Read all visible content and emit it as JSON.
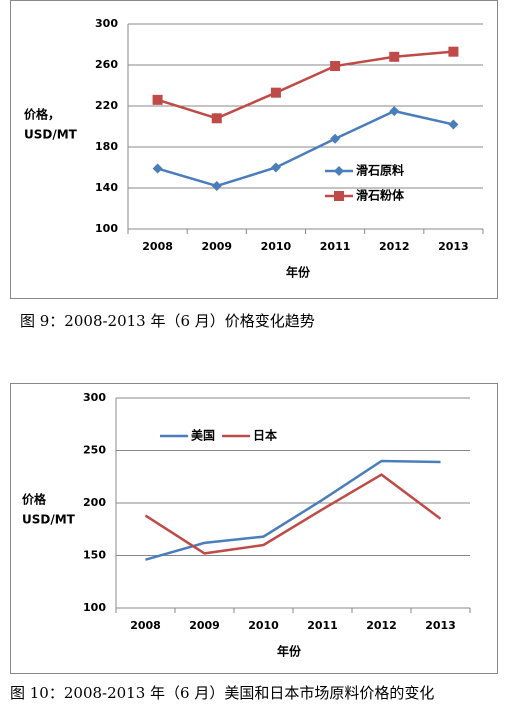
{
  "chart_data": [
    {
      "type": "line",
      "categories": [
        "2008",
        "2009",
        "2010",
        "2011",
        "2012",
        "2013"
      ],
      "series": [
        {
          "name": "滑石原料",
          "color": "#4a7ebb",
          "marker": "diamond",
          "values": [
            159,
            142,
            160,
            188,
            215,
            202
          ]
        },
        {
          "name": "滑石粉体",
          "color": "#be4b48",
          "marker": "square",
          "values": [
            226,
            208,
            233,
            259,
            268,
            273
          ]
        }
      ],
      "ylim": [
        100,
        300
      ],
      "yticks": [
        100,
        140,
        180,
        220,
        260,
        300
      ],
      "grid": true,
      "ylabel": [
        "价格，",
        "USD/MT"
      ],
      "xlabel": "年份",
      "legend": "right",
      "caption": "图 9：2008-2013 年（6 月）价格变化趋势"
    },
    {
      "type": "line",
      "categories": [
        "2008",
        "2009",
        "2010",
        "2011",
        "2012",
        "2013"
      ],
      "series": [
        {
          "name": "美国",
          "color": "#4a7ebb",
          "values": [
            146,
            162,
            168,
            203,
            240,
            239
          ]
        },
        {
          "name": "日本",
          "color": "#be4b48",
          "values": [
            188,
            152,
            160,
            194,
            227,
            185
          ]
        }
      ],
      "ylim": [
        100,
        300
      ],
      "yticks": [
        100,
        150,
        200,
        250,
        300
      ],
      "grid": true,
      "ylabel": [
        "价格",
        "USD/MT"
      ],
      "xlabel": "年份",
      "legend": "top-left",
      "caption": "图 10：2008-2013 年（6 月）美国和日本市场原料价格的变化"
    }
  ]
}
